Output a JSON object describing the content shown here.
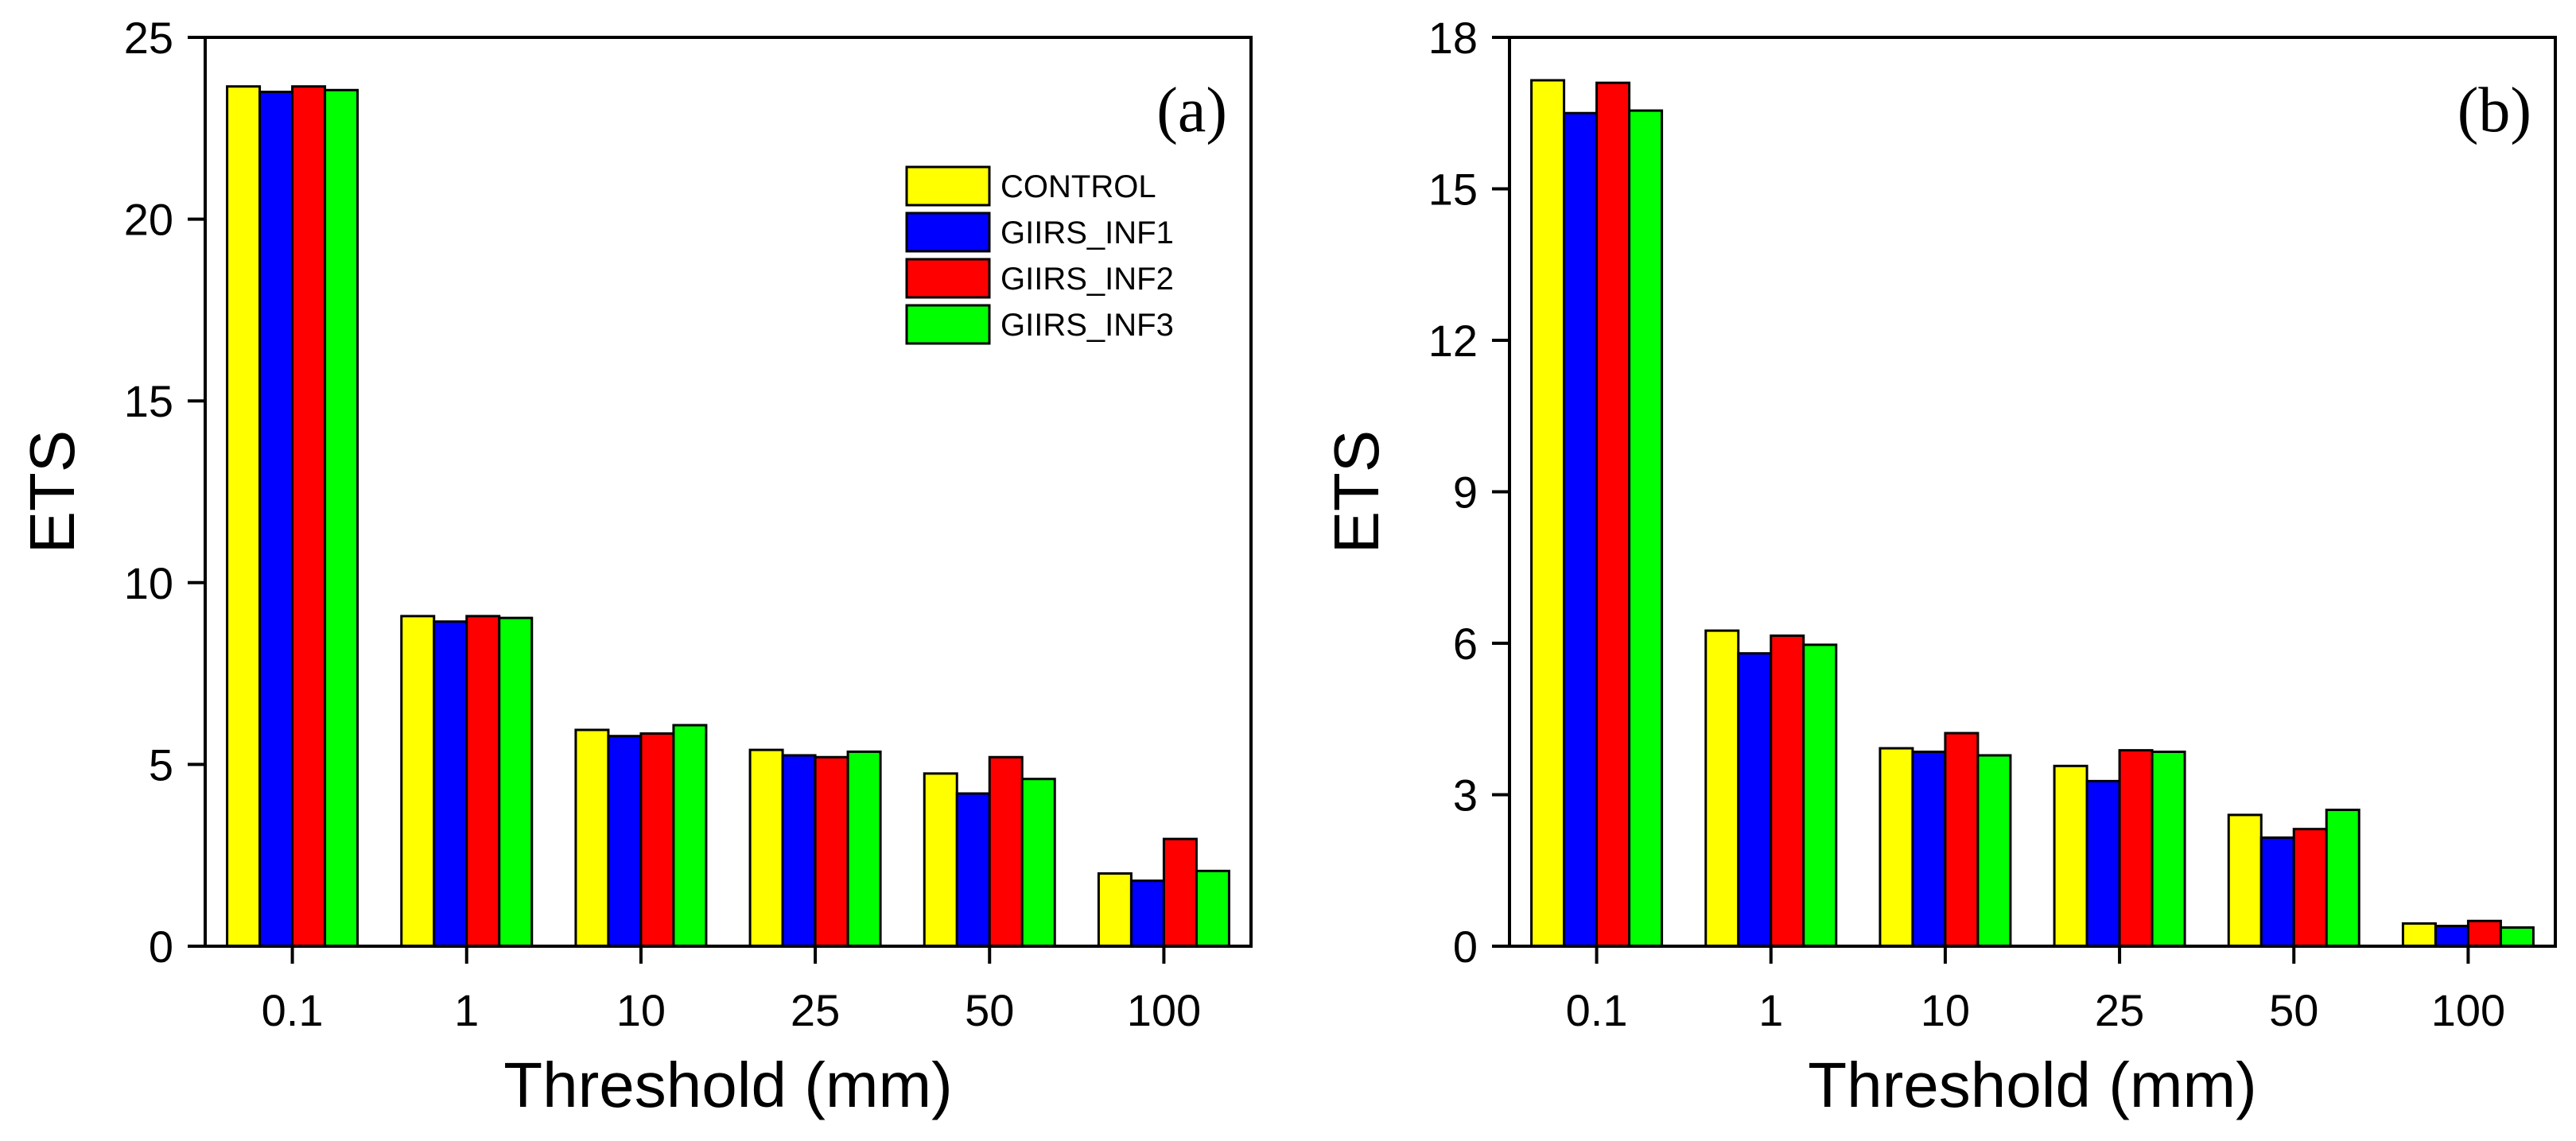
{
  "chart_data": [
    {
      "type": "bar",
      "panel_label": "(a)",
      "title": "",
      "xlabel": "Threshold (mm)",
      "ylabel": "ETS",
      "categories": [
        "0.1",
        "1",
        "10",
        "25",
        "50",
        "100"
      ],
      "ylim": [
        0,
        25
      ],
      "yticks": [
        "0",
        "5",
        "10",
        "15",
        "20",
        "25"
      ],
      "ytick_values": [
        0,
        5,
        10,
        15,
        20,
        25
      ],
      "grid": false,
      "legend": {
        "position": "top-right",
        "visible": true
      },
      "series": [
        {
          "name": "CONTROL",
          "color": "#ffff00",
          "values": [
            23.65,
            9.08,
            5.95,
            5.4,
            4.75,
            2.0
          ]
        },
        {
          "name": "GIIRS_INF1",
          "color": "#0000ff",
          "values": [
            23.5,
            8.93,
            5.78,
            5.25,
            4.2,
            1.8
          ]
        },
        {
          "name": "GIIRS_INF2",
          "color": "#ff0000",
          "values": [
            23.65,
            9.08,
            5.85,
            5.2,
            5.2,
            2.95
          ]
        },
        {
          "name": "GIIRS_INF3",
          "color": "#00ff00",
          "values": [
            23.55,
            9.03,
            6.08,
            5.35,
            4.6,
            2.07
          ]
        }
      ]
    },
    {
      "type": "bar",
      "panel_label": "(b)",
      "title": "",
      "xlabel": "Threshold (mm)",
      "ylabel": "ETS",
      "categories": [
        "0.1",
        "1",
        "10",
        "25",
        "50",
        "100"
      ],
      "ylim": [
        0,
        18
      ],
      "yticks": [
        "0",
        "3",
        "6",
        "9",
        "12",
        "15",
        "18"
      ],
      "ytick_values": [
        0,
        3,
        6,
        9,
        12,
        15,
        18
      ],
      "grid": false,
      "legend": {
        "position": "none",
        "visible": false
      },
      "series": [
        {
          "name": "CONTROL",
          "color": "#ffff00",
          "values": [
            17.15,
            6.25,
            3.92,
            3.57,
            2.6,
            0.45
          ]
        },
        {
          "name": "GIIRS_INF1",
          "color": "#0000ff",
          "values": [
            16.5,
            5.8,
            3.85,
            3.27,
            2.15,
            0.4
          ]
        },
        {
          "name": "GIIRS_INF2",
          "color": "#ff0000",
          "values": [
            17.1,
            6.15,
            4.22,
            3.88,
            2.32,
            0.5
          ]
        },
        {
          "name": "GIIRS_INF3",
          "color": "#00ff00",
          "values": [
            16.55,
            5.97,
            3.78,
            3.85,
            2.7,
            0.37
          ]
        }
      ]
    }
  ]
}
